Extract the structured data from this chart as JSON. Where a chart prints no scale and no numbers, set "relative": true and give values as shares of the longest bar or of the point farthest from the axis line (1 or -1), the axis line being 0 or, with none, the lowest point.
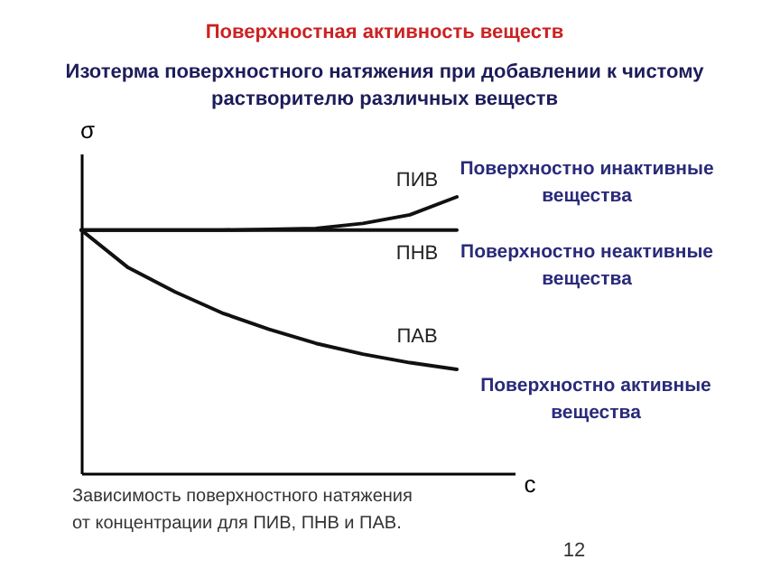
{
  "chart_data": {
    "type": "line",
    "title": "Поверхностная активность веществ",
    "subtitle": "Изотерма поверхностного натяжения при добавлении к чистому растворителю различных веществ",
    "xlabel": "c",
    "ylabel": "σ",
    "relative": true,
    "categories": [
      null,
      null,
      null,
      null,
      null,
      null,
      null,
      null,
      null
    ],
    "series": [
      {
        "name": "ПИВ",
        "color": "#111111",
        "values": [
          0.88,
          0.88,
          0.88,
          0.88,
          0.882,
          0.886,
          0.904,
          0.935,
          1
        ]
      },
      {
        "name": "ПНВ",
        "color": "#111111",
        "values": [
          0.88,
          0.88,
          0.88,
          0.88,
          0.88,
          0.88,
          0.88,
          0.88,
          0.88
        ]
      },
      {
        "name": "ПАВ",
        "color": "#111111",
        "values": [
          0.88,
          0.744,
          0.656,
          0.58,
          0.521,
          0.47,
          0.431,
          0.4,
          0.376
        ]
      }
    ],
    "annotations": [
      "Поверхностно инактивные вещества",
      "Поверхностно неактивные вещества",
      "Поверхностно активные вещества",
      "Зависимость поверхностного натяжения от концентрации для ПИВ, ПНВ и ПАВ.",
      "12"
    ]
  }
}
